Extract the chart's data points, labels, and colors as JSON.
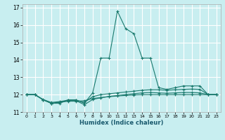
{
  "title": "",
  "xlabel": "Humidex (Indice chaleur)",
  "bg_color": "#c8eef0",
  "grid_color": "#ffffff",
  "line_color": "#1a7a6e",
  "xlim": [
    -0.5,
    23.5
  ],
  "ylim": [
    11.0,
    17.2
  ],
  "yticks": [
    11,
    12,
    13,
    14,
    15,
    16,
    17
  ],
  "ytick_labels": [
    "11",
    "12",
    "13",
    "14",
    "15",
    "16",
    "17"
  ],
  "xticks": [
    0,
    1,
    2,
    3,
    4,
    5,
    6,
    7,
    8,
    9,
    10,
    11,
    12,
    13,
    14,
    15,
    16,
    17,
    18,
    19,
    20,
    21,
    22,
    23
  ],
  "series": [
    {
      "x": [
        0,
        1,
        2,
        3,
        4,
        5,
        6,
        7,
        8,
        9,
        10,
        11,
        12,
        13,
        14,
        15,
        16,
        17,
        18,
        19,
        20,
        21,
        22,
        23
      ],
      "y": [
        12.0,
        12.0,
        11.7,
        11.5,
        11.5,
        11.7,
        11.7,
        11.5,
        12.1,
        14.1,
        14.1,
        16.8,
        15.8,
        15.5,
        14.1,
        14.1,
        12.4,
        12.3,
        12.4,
        12.5,
        12.5,
        12.5,
        12.0,
        12.0
      ]
    },
    {
      "x": [
        0,
        1,
        2,
        3,
        4,
        5,
        6,
        7,
        8,
        9,
        10,
        11,
        12,
        13,
        14,
        15,
        16,
        17,
        18,
        19,
        20,
        21,
        22,
        23
      ],
      "y": [
        12.0,
        12.0,
        11.72,
        11.55,
        11.6,
        11.68,
        11.68,
        11.55,
        11.88,
        12.0,
        12.05,
        12.1,
        12.15,
        12.2,
        12.25,
        12.28,
        12.28,
        12.25,
        12.28,
        12.3,
        12.32,
        12.3,
        12.0,
        12.0
      ]
    },
    {
      "x": [
        0,
        1,
        2,
        3,
        4,
        5,
        6,
        7,
        8,
        9,
        10,
        11,
        12,
        13,
        14,
        15,
        16,
        17,
        18,
        19,
        20,
        21,
        22,
        23
      ],
      "y": [
        12.0,
        12.0,
        11.7,
        11.5,
        11.58,
        11.65,
        11.65,
        11.42,
        11.72,
        11.82,
        11.9,
        11.95,
        12.0,
        12.05,
        12.1,
        12.12,
        12.1,
        12.08,
        12.1,
        12.12,
        12.12,
        12.1,
        12.0,
        12.0
      ]
    },
    {
      "x": [
        0,
        1,
        2,
        3,
        4,
        5,
        6,
        7,
        8,
        9,
        10,
        11,
        12,
        13,
        14,
        15,
        16,
        17,
        18,
        19,
        20,
        21,
        22,
        23
      ],
      "y": [
        12.0,
        12.0,
        11.7,
        11.5,
        11.55,
        11.62,
        11.62,
        11.65,
        11.78,
        11.83,
        11.88,
        11.92,
        11.95,
        11.98,
        12.0,
        12.0,
        12.0,
        12.0,
        12.0,
        12.0,
        12.0,
        12.0,
        12.0,
        12.0
      ]
    }
  ]
}
